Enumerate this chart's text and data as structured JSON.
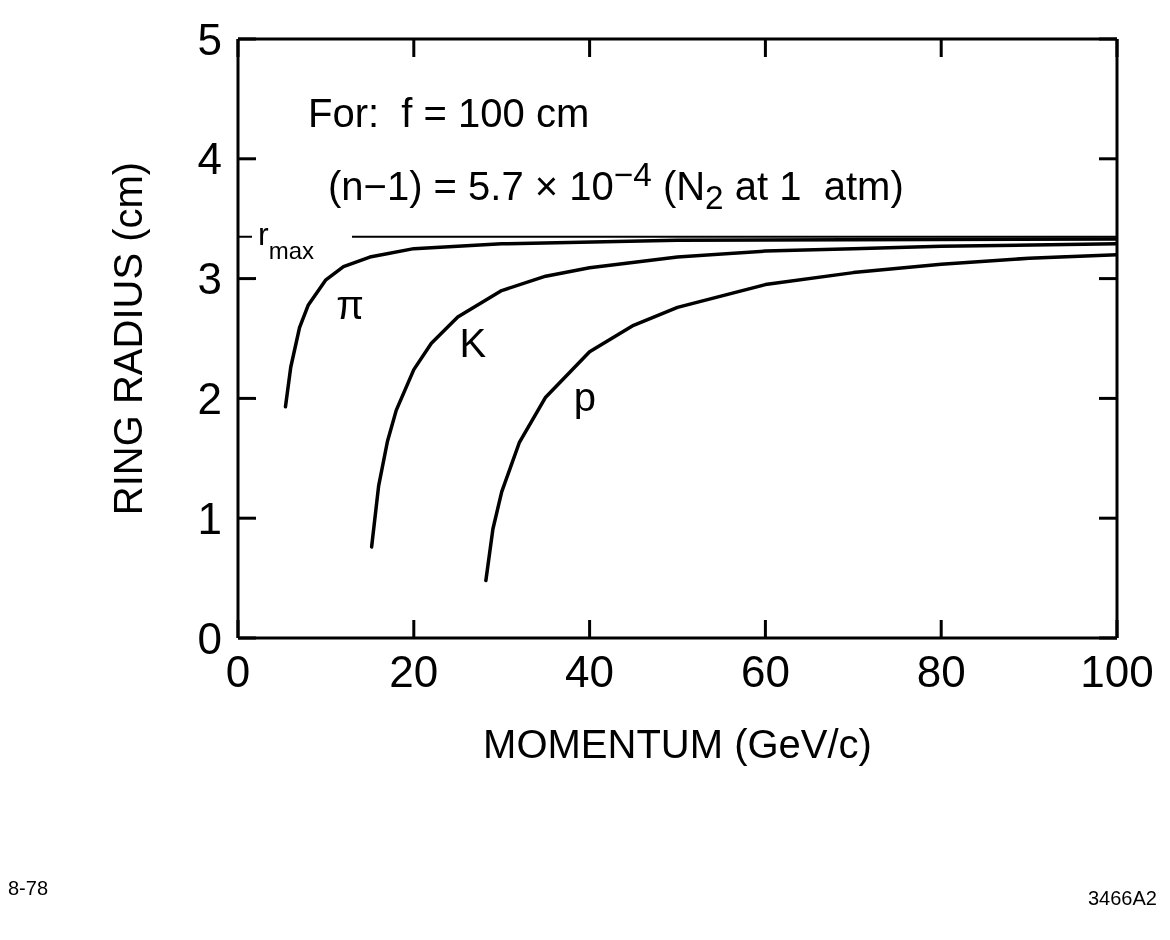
{
  "chart_data": {
    "type": "line",
    "xlabel": "MOMENTUM    (GeV/c)",
    "ylabel": "RING RADIUS    (cm)",
    "xlim": [
      0,
      100
    ],
    "xticks": [
      0,
      20,
      40,
      60,
      80,
      100
    ],
    "ylim": [
      0,
      5
    ],
    "yticks": [
      0,
      1,
      2,
      3,
      4,
      5
    ],
    "annotations": [
      "For:  f = 100 cm",
      "(n−1) = 5.7 × 10$^{−4}$ (N$_{2}$ at 1  atm)",
      "8-78",
      "3466A2"
    ],
    "ref_lines": [
      {
        "axis": "y",
        "value": 3.35,
        "label": "r$_{max}$",
        "color": "#000000"
      }
    ],
    "series": [
      {
        "name": "π",
        "color": "#000000",
        "x": [
          5.4,
          6,
          7,
          8,
          10,
          12,
          15,
          20,
          30,
          50,
          100
        ],
        "values": [
          1.93,
          2.26,
          2.59,
          2.78,
          2.99,
          3.1,
          3.18,
          3.25,
          3.29,
          3.32,
          3.33
        ]
      },
      {
        "name": "K",
        "color": "#000000",
        "x": [
          15.2,
          16,
          17,
          18,
          20,
          22,
          25,
          30,
          35,
          40,
          50,
          60,
          70,
          80,
          100
        ],
        "values": [
          0.76,
          1.27,
          1.64,
          1.9,
          2.24,
          2.46,
          2.68,
          2.9,
          3.02,
          3.09,
          3.18,
          3.23,
          3.25,
          3.27,
          3.29
        ]
      },
      {
        "name": "p",
        "color": "#000000",
        "x": [
          28.2,
          29,
          30,
          32,
          35,
          40,
          45,
          50,
          60,
          70,
          80,
          90,
          100
        ],
        "values": [
          0.48,
          0.91,
          1.22,
          1.63,
          2.01,
          2.39,
          2.61,
          2.76,
          2.95,
          3.05,
          3.12,
          3.17,
          3.2
        ]
      }
    ]
  }
}
